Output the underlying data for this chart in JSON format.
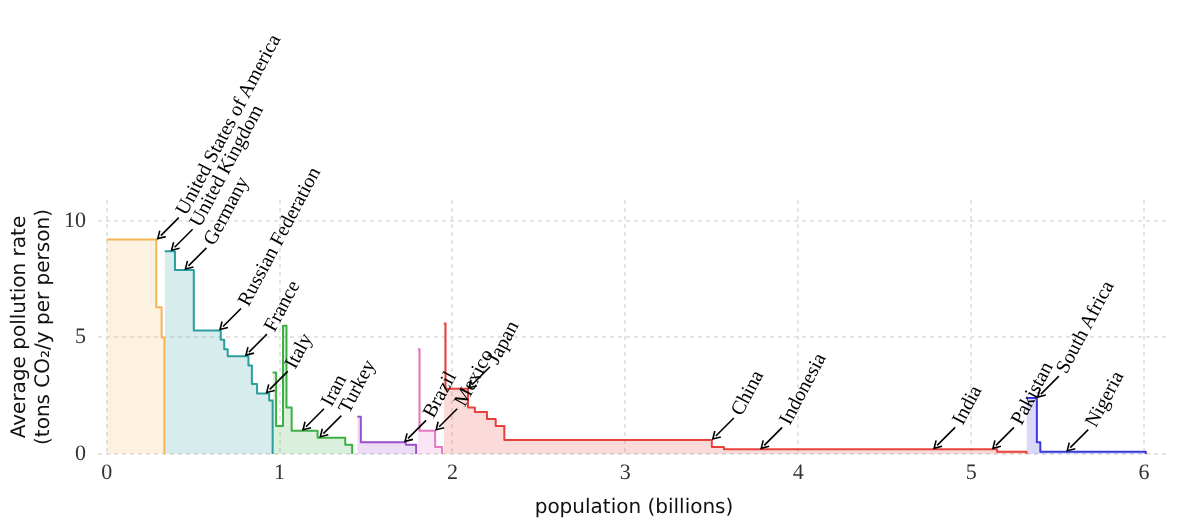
{
  "chart_data": {
    "type": "step",
    "xlabel": "population (billions)",
    "ylabel": "Average pollution rate\n(tons CO₂/y per person)",
    "xlim": [
      -0.05,
      6.15
    ],
    "xticks": [
      0,
      1,
      2,
      3,
      4,
      5,
      6
    ],
    "ylim": [
      0,
      10.9
    ],
    "yticks": [
      0,
      5,
      10
    ],
    "grid": true,
    "legend": false,
    "marker": "none",
    "series": [
      {
        "color": "#f5b556",
        "x": [
          0,
          0.287,
          0.318,
          0.334
        ],
        "values": [
          9.2,
          6.3,
          5.0,
          0
        ]
      },
      {
        "color": "#2a9d9d",
        "x": [
          0.336,
          0.395,
          0.504,
          0.66,
          0.68,
          0.7,
          0.82,
          0.84,
          0.87,
          0.94,
          0.96
        ],
        "values": [
          8.7,
          7.9,
          5.3,
          4.9,
          4.5,
          4.2,
          3.8,
          3.0,
          2.6,
          2.3,
          0
        ]
      },
      {
        "color": "#3cb043",
        "x": [
          0.96,
          0.98,
          1.02,
          1.04,
          1.07,
          1.22,
          1.38,
          1.42
        ],
        "values": [
          3.5,
          1.2,
          5.5,
          2.0,
          1.0,
          0.7,
          0.4,
          0
        ]
      },
      {
        "color": "#9b4dca",
        "x": [
          1.45,
          1.47,
          1.52,
          1.73,
          1.79
        ],
        "values": [
          1.6,
          0.5,
          0.5,
          0.4,
          0
        ]
      },
      {
        "color": "#e377c2",
        "x": [
          1.8,
          1.81,
          1.9,
          1.94
        ],
        "values": [
          4.5,
          1.0,
          0.3,
          0
        ]
      },
      {
        "color": "#e8413c",
        "x": [
          1.95,
          1.96,
          2.09,
          2.13,
          2.2,
          2.25,
          2.3,
          3.5,
          3.57,
          5.15,
          5.32
        ],
        "values": [
          5.6,
          2.8,
          2.0,
          1.8,
          1.5,
          1.2,
          0.6,
          0.3,
          0.2,
          0.1,
          0
        ]
      },
      {
        "color": "#3a3adc",
        "x": [
          5.32,
          5.38,
          5.4,
          6.01
        ],
        "values": [
          2.4,
          0.5,
          0.1,
          0
        ]
      }
    ],
    "annotations": [
      {
        "text": "United States of America",
        "x": 0.29,
        "y": 9.2
      },
      {
        "text": "United Kingdom",
        "x": 0.37,
        "y": 8.7
      },
      {
        "text": "Germany",
        "x": 0.45,
        "y": 7.9
      },
      {
        "text": "Russian Federation",
        "x": 0.65,
        "y": 5.3
      },
      {
        "text": "France",
        "x": 0.8,
        "y": 4.2
      },
      {
        "text": "Italy",
        "x": 0.92,
        "y": 2.6
      },
      {
        "text": "Iran",
        "x": 1.13,
        "y": 1.0
      },
      {
        "text": "Turkey",
        "x": 1.23,
        "y": 0.7
      },
      {
        "text": "Brazil",
        "x": 1.72,
        "y": 0.5
      },
      {
        "text": "Mexico",
        "x": 1.9,
        "y": 1.0
      },
      {
        "text": "Japan",
        "x": 2.09,
        "y": 2.8
      },
      {
        "text": "China",
        "x": 3.5,
        "y": 0.6
      },
      {
        "text": "Indonesia",
        "x": 3.78,
        "y": 0.2
      },
      {
        "text": "India",
        "x": 4.78,
        "y": 0.2
      },
      {
        "text": "Pakistan",
        "x": 5.12,
        "y": 0.2
      },
      {
        "text": "South Africa",
        "x": 5.38,
        "y": 2.4
      },
      {
        "text": "Nigeria",
        "x": 5.55,
        "y": 0.1
      }
    ]
  }
}
